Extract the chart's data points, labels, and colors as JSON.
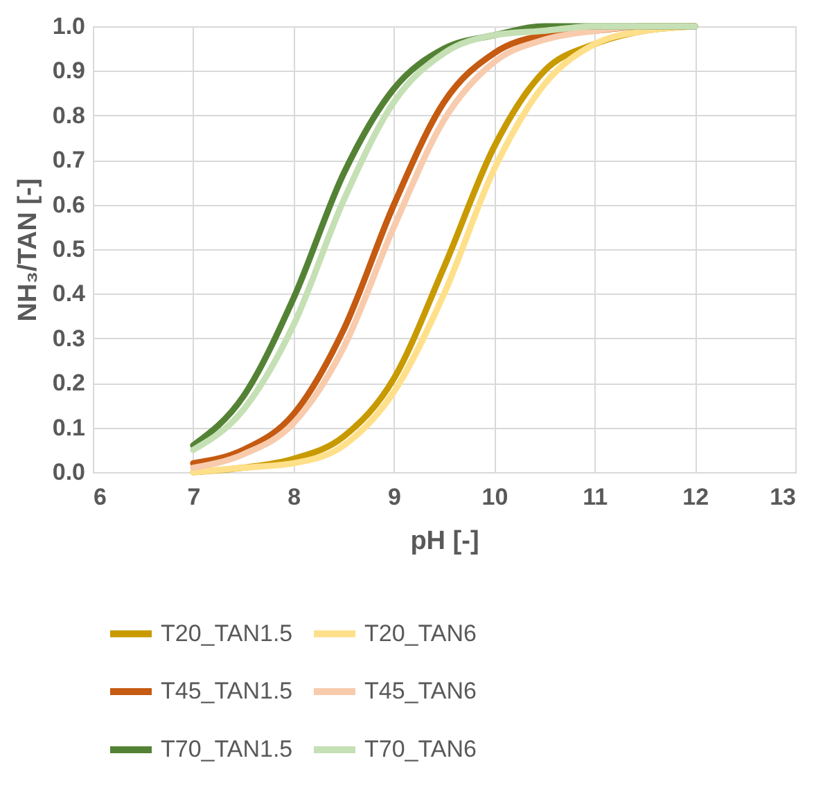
{
  "chart_data": {
    "type": "line",
    "xlabel": "pH [-]",
    "ylabel": "NH₃/TAN [-]",
    "x": [
      7,
      7.5,
      8,
      8.5,
      9,
      9.5,
      10,
      10.5,
      11,
      11.5,
      12
    ],
    "series": [
      {
        "name": "T20_TAN1.5",
        "color": "#c89a00",
        "values": [
          0.0,
          0.01,
          0.03,
          0.08,
          0.21,
          0.46,
          0.73,
          0.9,
          0.96,
          0.99,
          1.0
        ]
      },
      {
        "name": "T20_TAN6",
        "color": "#ffe08a",
        "values": [
          0.0,
          0.01,
          0.02,
          0.06,
          0.18,
          0.4,
          0.68,
          0.87,
          0.96,
          0.99,
          1.0
        ]
      },
      {
        "name": "T45_TAN1.5",
        "color": "#c55a11",
        "values": [
          0.02,
          0.05,
          0.13,
          0.32,
          0.6,
          0.83,
          0.94,
          0.98,
          0.99,
          1.0,
          1.0
        ]
      },
      {
        "name": "T45_TAN6",
        "color": "#f8cbad",
        "values": [
          0.01,
          0.04,
          0.11,
          0.28,
          0.55,
          0.79,
          0.92,
          0.97,
          0.99,
          1.0,
          1.0
        ]
      },
      {
        "name": "T70_TAN1.5",
        "color": "#548235",
        "values": [
          0.06,
          0.17,
          0.39,
          0.67,
          0.86,
          0.95,
          0.98,
          1.0,
          1.0,
          1.0,
          1.0
        ]
      },
      {
        "name": "T70_TAN6",
        "color": "#c5e0b4",
        "values": [
          0.05,
          0.14,
          0.33,
          0.61,
          0.83,
          0.94,
          0.98,
          0.99,
          1.0,
          1.0,
          1.0
        ]
      }
    ],
    "xlim": [
      6,
      13
    ],
    "xticks": [
      6,
      7,
      8,
      9,
      10,
      11,
      12,
      13
    ],
    "ylim": [
      0,
      1
    ],
    "yticks": [
      {
        "value": 0,
        "label": "0.0"
      },
      {
        "value": 0.1,
        "label": "0.1"
      },
      {
        "value": 0.2,
        "label": "0.2"
      },
      {
        "value": 0.3,
        "label": "0.3"
      },
      {
        "value": 0.4,
        "label": "0.4"
      },
      {
        "value": 0.5,
        "label": "0.5"
      },
      {
        "value": 0.6,
        "label": "0.6"
      },
      {
        "value": 0.7,
        "label": "0.7"
      },
      {
        "value": 0.8,
        "label": "0.8"
      },
      {
        "value": 0.9,
        "label": "0.9"
      },
      {
        "value": 1,
        "label": "1.0"
      }
    ],
    "grid": true,
    "legend": "bottom",
    "marker": "none",
    "line_style": "solid"
  }
}
